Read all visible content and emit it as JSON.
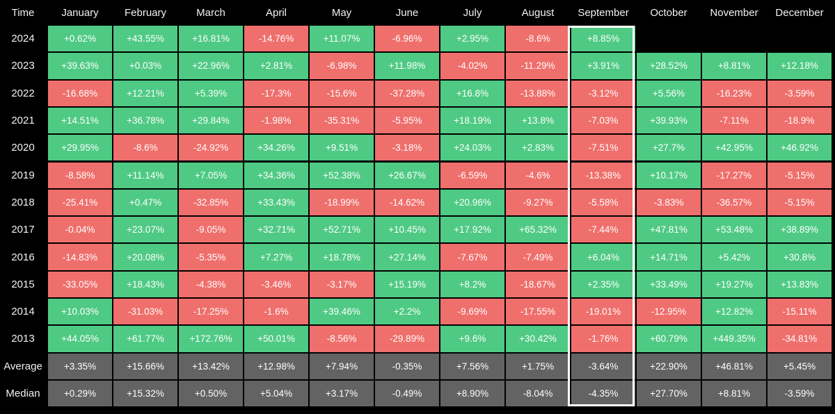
{
  "chart_data": {
    "type": "table",
    "corner_label": "Time",
    "columns": [
      "January",
      "February",
      "March",
      "April",
      "May",
      "June",
      "July",
      "August",
      "September",
      "October",
      "November",
      "December"
    ],
    "highlighted_column": "September",
    "colors": {
      "positive": "#4fca84",
      "negative": "#ef6f6c",
      "summary": "#636363",
      "background": "#000000",
      "highlight_border": "#ffffff"
    },
    "rows": [
      {
        "label": "2024",
        "values": [
          "+0.62%",
          "+43.55%",
          "+16.81%",
          "-14.76%",
          "+11.07%",
          "-6.96%",
          "+2.95%",
          "-8.6%",
          "+8.85%",
          null,
          null,
          null
        ]
      },
      {
        "label": "2023",
        "values": [
          "+39.63%",
          "+0.03%",
          "+22.96%",
          "+2.81%",
          "-6.98%",
          "+11.98%",
          "-4.02%",
          "-11.29%",
          "+3.91%",
          "+28.52%",
          "+8.81%",
          "+12.18%"
        ]
      },
      {
        "label": "2022",
        "values": [
          "-16.68%",
          "+12.21%",
          "+5.39%",
          "-17.3%",
          "-15.6%",
          "-37.28%",
          "+16.8%",
          "-13.88%",
          "-3.12%",
          "+5.56%",
          "-16.23%",
          "-3.59%"
        ]
      },
      {
        "label": "2021",
        "values": [
          "+14.51%",
          "+36.78%",
          "+29.84%",
          "-1.98%",
          "-35.31%",
          "-5.95%",
          "+18.19%",
          "+13.8%",
          "-7.03%",
          "+39.93%",
          "-7.11%",
          "-18.9%"
        ]
      },
      {
        "label": "2020",
        "values": [
          "+29.95%",
          "-8.6%",
          "-24.92%",
          "+34.26%",
          "+9.51%",
          "-3.18%",
          "+24.03%",
          "+2.83%",
          "-7.51%",
          "+27.7%",
          "+42.95%",
          "+46.92%"
        ]
      },
      {
        "label": "2019",
        "values": [
          "-8.58%",
          "+11.14%",
          "+7.05%",
          "+34.36%",
          "+52.38%",
          "+26.67%",
          "-6.59%",
          "-4.6%",
          "-13.38%",
          "+10.17%",
          "-17.27%",
          "-5.15%"
        ]
      },
      {
        "label": "2018",
        "values": [
          "-25.41%",
          "+0.47%",
          "-32.85%",
          "+33.43%",
          "-18.99%",
          "-14.62%",
          "+20.96%",
          "-9.27%",
          "-5.58%",
          "-3.83%",
          "-36.57%",
          "-5.15%"
        ]
      },
      {
        "label": "2017",
        "values": [
          "-0.04%",
          "+23.07%",
          "-9.05%",
          "+32.71%",
          "+52.71%",
          "+10.45%",
          "+17.92%",
          "+65.32%",
          "-7.44%",
          "+47.81%",
          "+53.48%",
          "+38.89%"
        ]
      },
      {
        "label": "2016",
        "values": [
          "-14.83%",
          "+20.08%",
          "-5.35%",
          "+7.27%",
          "+18.78%",
          "+27.14%",
          "-7.67%",
          "-7.49%",
          "+6.04%",
          "+14.71%",
          "+5.42%",
          "+30.8%"
        ]
      },
      {
        "label": "2015",
        "values": [
          "-33.05%",
          "+18.43%",
          "-4.38%",
          "-3.46%",
          "-3.17%",
          "+15.19%",
          "+8.2%",
          "-18.67%",
          "+2.35%",
          "+33.49%",
          "+19.27%",
          "+13.83%"
        ]
      },
      {
        "label": "2014",
        "values": [
          "+10.03%",
          "-31.03%",
          "-17.25%",
          "-1.6%",
          "+39.46%",
          "+2.2%",
          "-9.69%",
          "-17.55%",
          "-19.01%",
          "-12.95%",
          "+12.82%",
          "-15.11%"
        ]
      },
      {
        "label": "2013",
        "values": [
          "+44.05%",
          "+61.77%",
          "+172.76%",
          "+50.01%",
          "-8.56%",
          "-29.89%",
          "+9.6%",
          "+30.42%",
          "-1.76%",
          "+60.79%",
          "+449.35%",
          "-34.81%"
        ]
      }
    ],
    "summary_rows": [
      {
        "label": "Average",
        "values": [
          "+3.35%",
          "+15.66%",
          "+13.42%",
          "+12.98%",
          "+7.94%",
          "-0.35%",
          "+7.56%",
          "+1.75%",
          "-3.64%",
          "+22.90%",
          "+46.81%",
          "+5.45%"
        ]
      },
      {
        "label": "Median",
        "values": [
          "+0.29%",
          "+15.32%",
          "+0.50%",
          "+5.04%",
          "+3.17%",
          "-0.49%",
          "+8.90%",
          "-8.04%",
          "-4.35%",
          "+27.70%",
          "+8.81%",
          "-3.59%"
        ]
      }
    ]
  }
}
